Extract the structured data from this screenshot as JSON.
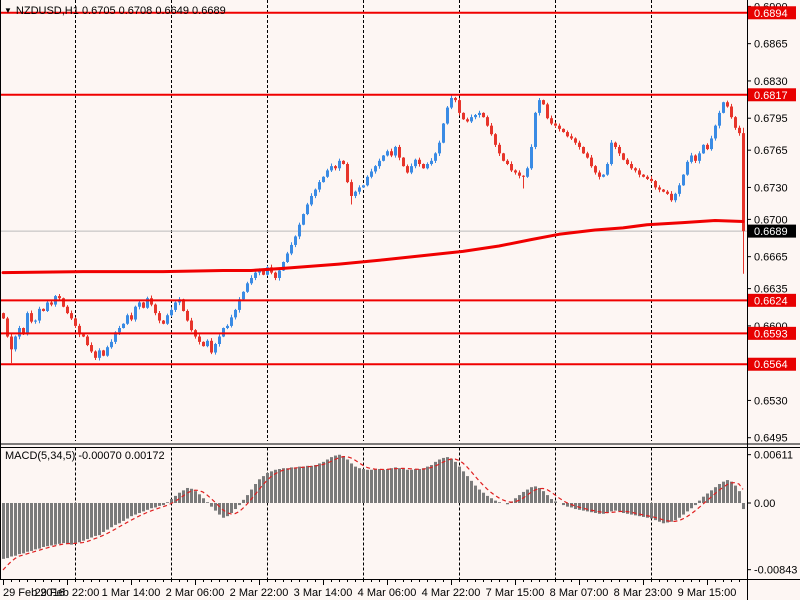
{
  "title_bar": {
    "dropdown_icon": "▼",
    "symbol": "NZDUSD,H1",
    "ohlc": "0.6705 0.6708 0.6649 0.6689"
  },
  "colors": {
    "background": "#FDF6F3",
    "bull_candle": "#3A8BE4",
    "bear_candle": "#E7352B",
    "level_line_red": "#F00000",
    "ma_line_red": "#F00000",
    "grid_black": "#000000",
    "hist_gray": "#7A7A7A",
    "signal_red": "#E02020",
    "badge_red": "#E80000",
    "badge_black": "#000000",
    "current_price_gray": "#BBBBBB",
    "axis_text": "#000000"
  },
  "chart_data": {
    "type": "candlestick",
    "symbol": "NZDUSD",
    "timeframe": "H1",
    "price_scale": 0.0001,
    "price_ylim_pips": [
      6492,
      6906
    ],
    "first_open_pips": 6612,
    "closes_pips": [
      6607,
      6590,
      6578,
      6590,
      6598,
      6592,
      6612,
      6604,
      6605,
      6616,
      6614,
      6622,
      6620,
      6628,
      6626,
      6618,
      6612,
      6607,
      6600,
      6592,
      6590,
      6582,
      6576,
      6570,
      6577,
      6572,
      6580,
      6585,
      6594,
      6598,
      6602,
      6610,
      6606,
      6618,
      6622,
      6617,
      6626,
      6620,
      6612,
      6605,
      6602,
      6610,
      6615,
      6622,
      6625,
      6614,
      6605,
      6596,
      6590,
      6585,
      6581,
      6586,
      6575,
      6583,
      6590,
      6598,
      6600,
      6608,
      6615,
      6625,
      6632,
      6640,
      6645,
      6650,
      6652,
      6648,
      6655,
      6650,
      6645,
      6652,
      6660,
      6668,
      6676,
      6684,
      6695,
      6705,
      6714,
      6722,
      6728,
      6735,
      6740,
      6746,
      6750,
      6748,
      6755,
      6752,
      6735,
      6722,
      6726,
      6730,
      6732,
      6740,
      6745,
      6750,
      6755,
      6760,
      6764,
      6760,
      6768,
      6758,
      6750,
      6744,
      6750,
      6756,
      6752,
      6748,
      6752,
      6755,
      6762,
      6772,
      6790,
      6805,
      6814,
      6812,
      6800,
      6794,
      6792,
      6796,
      6798,
      6800,
      6796,
      6788,
      6780,
      6770,
      6762,
      6755,
      6752,
      6746,
      6744,
      6741,
      6740,
      6748,
      6768,
      6800,
      6812,
      6808,
      6795,
      6790,
      6788,
      6785,
      6782,
      6778,
      6776,
      6772,
      6768,
      6762,
      6758,
      6750,
      6744,
      6740,
      6742,
      6752,
      6772,
      6768,
      6762,
      6756,
      6752,
      6748,
      6746,
      6742,
      6740,
      6738,
      6736,
      6730,
      6728,
      6726,
      6724,
      6718,
      6724,
      6732,
      6742,
      6754,
      6760,
      6755,
      6762,
      6770,
      6766,
      6776,
      6788,
      6800,
      6810,
      6806,
      6796,
      6786,
      6781,
      6689
    ],
    "wick_overrides": {
      "2": {
        "low": 6565
      },
      "87": {
        "low": 6714
      },
      "130": {
        "low": 6729
      },
      "185": {
        "low": 6649,
        "high": 6786
      }
    },
    "ma_keypoints_pips": [
      [
        0,
        6650
      ],
      [
        20,
        6651
      ],
      [
        40,
        6651
      ],
      [
        55,
        6652
      ],
      [
        62,
        6652
      ],
      [
        70,
        6654
      ],
      [
        84,
        6658
      ],
      [
        95,
        6662
      ],
      [
        105,
        6666
      ],
      [
        115,
        6670
      ],
      [
        124,
        6675
      ],
      [
        132,
        6681
      ],
      [
        139,
        6686
      ],
      [
        148,
        6690
      ],
      [
        155,
        6692
      ],
      [
        161,
        6695
      ],
      [
        170,
        6697
      ],
      [
        178,
        6699
      ],
      [
        185,
        6698
      ]
    ],
    "hlines_pips": [
      6894,
      6817,
      6624,
      6593,
      6564
    ],
    "current_price_pips": 6689,
    "grid_day_indices": [
      18,
      42,
      66,
      90,
      114,
      138,
      162
    ],
    "price_axis_labels": [
      {
        "text": "0.6900",
        "pips": 6900,
        "style": "plain"
      },
      {
        "text": "0.6894",
        "pips": 6894,
        "style": "badge_red"
      },
      {
        "text": "0.6865",
        "pips": 6865,
        "style": "plain"
      },
      {
        "text": "0.6830",
        "pips": 6830,
        "style": "plain"
      },
      {
        "text": "0.6817",
        "pips": 6817,
        "style": "badge_red"
      },
      {
        "text": "0.6795",
        "pips": 6795,
        "style": "plain"
      },
      {
        "text": "0.6765",
        "pips": 6765,
        "style": "plain"
      },
      {
        "text": "0.6730",
        "pips": 6730,
        "style": "plain"
      },
      {
        "text": "0.6700",
        "pips": 6700,
        "style": "plain"
      },
      {
        "text": "0.6689",
        "pips": 6689,
        "style": "badge_black"
      },
      {
        "text": "0.6665",
        "pips": 6665,
        "style": "plain"
      },
      {
        "text": "0.6635",
        "pips": 6635,
        "style": "plain"
      },
      {
        "text": "0.6624",
        "pips": 6624,
        "style": "badge_red"
      },
      {
        "text": "0.6600",
        "pips": 6600,
        "style": "plain"
      },
      {
        "text": "0.6593",
        "pips": 6593,
        "style": "badge_red"
      },
      {
        "text": "0.6564",
        "pips": 6564,
        "style": "badge_red"
      },
      {
        "text": "0.6530",
        "pips": 6530,
        "style": "plain"
      },
      {
        "text": "0.6495",
        "pips": 6495,
        "style": "plain"
      }
    ],
    "time_axis_labels": [
      {
        "text": "29 Feb 2016",
        "index": 0
      },
      {
        "text": "29 Feb 22:00",
        "index": 16
      },
      {
        "text": "1 Mar 14:00",
        "index": 32
      },
      {
        "text": "2 Mar 06:00",
        "index": 48
      },
      {
        "text": "2 Mar 22:00",
        "index": 64
      },
      {
        "text": "3 Mar 14:00",
        "index": 80
      },
      {
        "text": "4 Mar 06:00",
        "index": 96
      },
      {
        "text": "4 Mar 22:00",
        "index": 112
      },
      {
        "text": "7 Mar 15:00",
        "index": 128
      },
      {
        "text": "8 Mar 07:00",
        "index": 144
      },
      {
        "text": "8 Mar 23:00",
        "index": 160
      },
      {
        "text": "9 Mar 15:00",
        "index": 176
      }
    ],
    "macd": {
      "label": "MACD(5,34,5) -0.00070 0.00172",
      "params": "5,34,5",
      "main_value": "-0.00070",
      "signal_value": "0.00172",
      "value_scale": 0.0001,
      "ylim_pips": [
        -84.3,
        61.1
      ],
      "hist_pips": [
        -70,
        -69,
        -67,
        -66,
        -64,
        -63,
        -61,
        -60,
        -58,
        -57,
        -55,
        -54,
        -53,
        -52,
        -51,
        -50,
        -51,
        -52,
        -51,
        -49,
        -47,
        -45,
        -43,
        -41,
        -40,
        -36,
        -33,
        -30,
        -27,
        -25,
        -22,
        -19,
        -16,
        -14,
        -12,
        -10,
        -8,
        -6,
        -5,
        -3,
        -2,
        1,
        5,
        9,
        13,
        16,
        19,
        18,
        15,
        11,
        6,
        1,
        -4,
        -9,
        -14,
        -18,
        -16,
        -12,
        -7,
        -2,
        4,
        10,
        17,
        24,
        30,
        34,
        38,
        40,
        42,
        43,
        44,
        44,
        45,
        45,
        46,
        46,
        47,
        47,
        48,
        50,
        52,
        55,
        58,
        60,
        61,
        59,
        55,
        50,
        46,
        44,
        43,
        42,
        42,
        43,
        43,
        42,
        43,
        44,
        45,
        44,
        43,
        42,
        42,
        43,
        43,
        44,
        46,
        48,
        52,
        55,
        57,
        58,
        56,
        52,
        46,
        40,
        34,
        28,
        22,
        17,
        13,
        9,
        6,
        3,
        1,
        0,
        -1,
        2,
        6,
        10,
        14,
        17,
        20,
        21,
        19,
        15,
        10,
        5,
        2,
        0,
        -2,
        -4,
        -5,
        -7,
        -8,
        -9,
        -10,
        -11,
        -12,
        -13,
        -13,
        -12,
        -10,
        -9,
        -10,
        -12,
        -13,
        -14,
        -15,
        -16,
        -17,
        -18,
        -19,
        -21,
        -23,
        -25,
        -24,
        -23,
        -21,
        -18,
        -14,
        -10,
        -6,
        -2,
        3,
        8,
        12,
        16,
        20,
        24,
        27,
        29,
        27,
        22,
        15,
        -7
      ],
      "signal_prehistory_pips": [
        -96,
        -92,
        -86,
        -79
      ],
      "axis_labels": [
        {
          "text": "0.00611",
          "pips": 61.1
        },
        {
          "text": "0.00",
          "pips": 0
        },
        {
          "text": "-0.00843",
          "pips": -84.3
        }
      ]
    }
  }
}
